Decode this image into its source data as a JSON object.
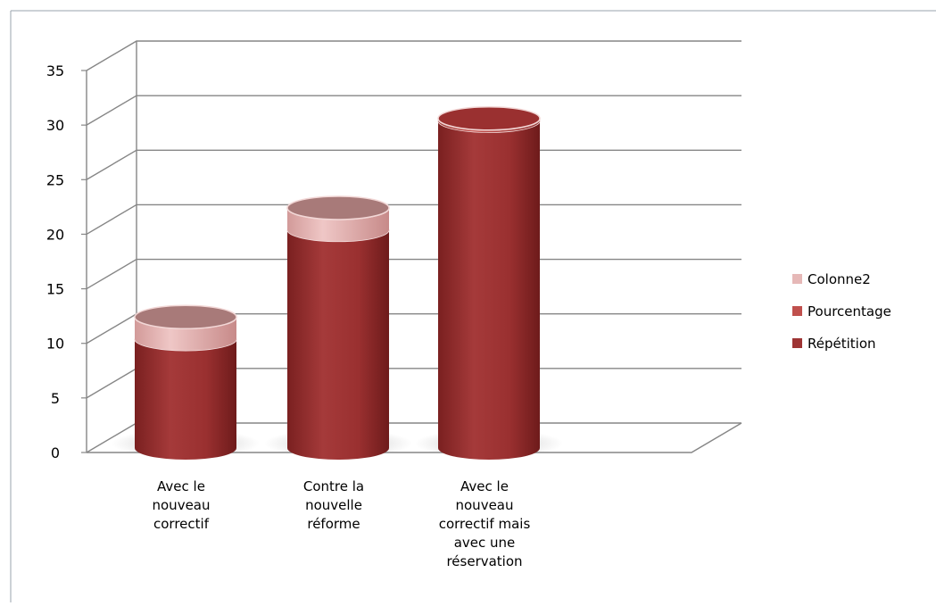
{
  "chart_data": {
    "type": "bar",
    "style": "3d-cylinder",
    "categories": [
      [
        "Avec le",
        "nouveau",
        "correctif"
      ],
      [
        "Contre la",
        "nouvelle",
        "réforme"
      ],
      [
        "Avec le",
        "nouveau",
        "correctif mais",
        "avec une",
        "réservation"
      ]
    ],
    "series": [
      {
        "name": "Répétition",
        "values": [
          10,
          20,
          30
        ],
        "color": "#9E3434"
      },
      {
        "name": "Pourcentage",
        "values": [
          0,
          0,
          0.2
        ],
        "color": "#C0504D"
      },
      {
        "name": "Colonne2",
        "values": [
          2,
          2,
          0
        ],
        "color": "#E6B8B7"
      }
    ],
    "stacked": true,
    "ylim": [
      0,
      35
    ],
    "yticks": [
      0,
      5,
      10,
      15,
      20,
      25,
      30,
      35
    ],
    "grid": true,
    "legend_position": "right",
    "title": "",
    "xlabel": "",
    "ylabel": ""
  }
}
